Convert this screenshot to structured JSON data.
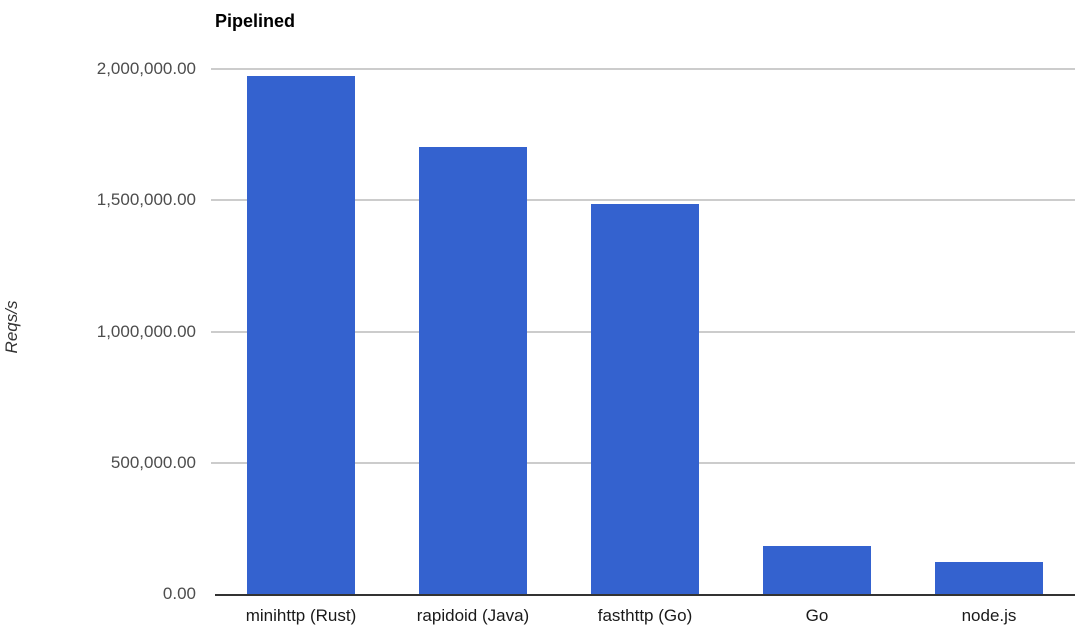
{
  "chart_data": {
    "type": "bar",
    "title": "Pipelined",
    "xlabel": "",
    "ylabel": "Reqs/s",
    "categories": [
      "minihttp (Rust)",
      "rapidoid (Java)",
      "fasthttp (Go)",
      "Go",
      "node.js"
    ],
    "values": [
      1975000,
      1702000,
      1487000,
      183000,
      122000
    ],
    "series": [
      {
        "name": "Reqs/s",
        "values": [
          1975000,
          1702000,
          1487000,
          183000,
          122000
        ]
      }
    ],
    "ylim": [
      0,
      2000000
    ],
    "yticks": [
      {
        "value": 0,
        "label": "0.00"
      },
      {
        "value": 500000,
        "label": "500,000.00"
      },
      {
        "value": 1000000,
        "label": "1,000,000.00"
      },
      {
        "value": 1500000,
        "label": "1,500,000.00"
      },
      {
        "value": 2000000,
        "label": "2,000,000.00"
      }
    ],
    "grid": true,
    "legend_position": "none",
    "colors": {
      "bar": "#3462cf",
      "gridline": "#cccccc",
      "axis_line": "#333333",
      "tick_label": "#4d4d4d",
      "category_label": "#1a1a1a",
      "title": "#000000"
    }
  }
}
